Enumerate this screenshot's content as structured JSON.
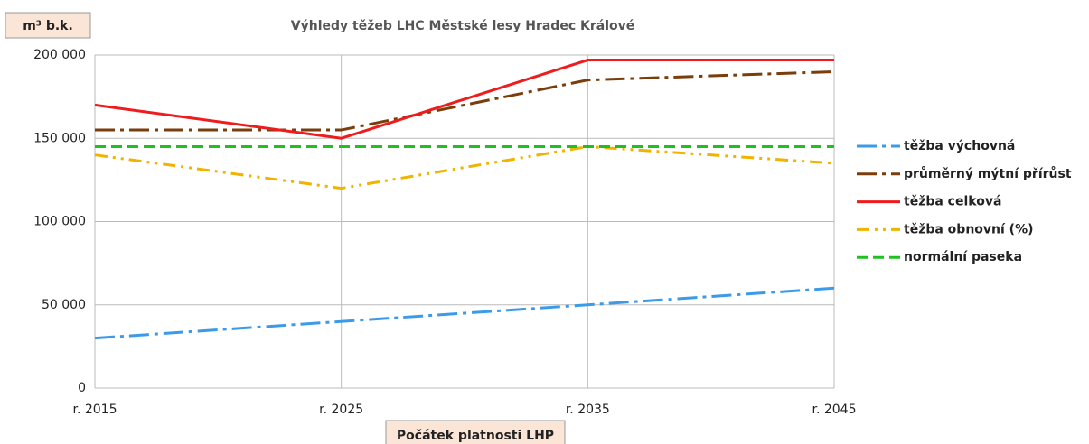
{
  "chart_data": {
    "type": "line",
    "title": "Výhledy těžeb LHC Městské lesy Hradec Králové",
    "y_label": "m³ b.k.",
    "x_label": "Počátek platnosti LHP",
    "categories": [
      "r. 2015",
      "r. 2025",
      "r. 2035",
      "r. 2045"
    ],
    "series": [
      {
        "name": "těžba výchovná",
        "color": "#3c9be8",
        "dash": "22 6 4 6",
        "values": [
          30000,
          40000,
          50000,
          60000
        ]
      },
      {
        "name": "průměrný mýtní přírůst",
        "color": "#7a3e0c",
        "dash": "22 6 4 6",
        "values": [
          155000,
          155000,
          185000,
          190000
        ]
      },
      {
        "name": "těžba celková",
        "color": "#ee1c1c",
        "dash": "none",
        "values": [
          170000,
          150000,
          197000,
          197000
        ]
      },
      {
        "name": "těžba obnovní (%)",
        "color": "#f0b400",
        "dash": "14 6 3 6 3 6",
        "values": [
          140000,
          120000,
          145000,
          135000
        ]
      },
      {
        "name": "normální paseka",
        "color": "#1ec21e",
        "dash": "12 6",
        "values": [
          145000,
          145000,
          145000,
          145000
        ]
      }
    ],
    "ylim": [
      0,
      200000
    ],
    "yticks": [
      0,
      {
        "value": 50000,
        "label": "50 000"
      },
      {
        "value": 100000,
        "label": "100 000"
      },
      {
        "value": 150000,
        "label": "150 000"
      },
      {
        "value": 200000,
        "label": "200 000"
      }
    ],
    "grid": true,
    "legend": "right"
  }
}
